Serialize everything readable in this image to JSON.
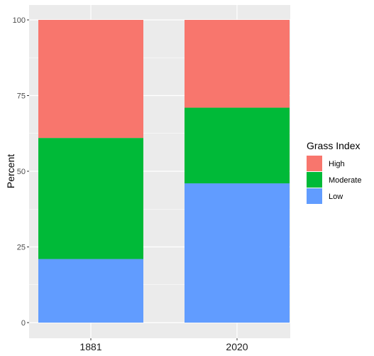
{
  "chart_data": {
    "type": "bar",
    "stacked": true,
    "categories": [
      "1881",
      "2020"
    ],
    "series": [
      {
        "name": "Low",
        "values": [
          21,
          46
        ],
        "color": "#619CFF"
      },
      {
        "name": "Moderate",
        "values": [
          40,
          25
        ],
        "color": "#00BA38"
      },
      {
        "name": "High",
        "values": [
          39,
          29
        ],
        "color": "#F8766D"
      }
    ],
    "ylabel": "Percent",
    "xlabel": "",
    "ylim": [
      0,
      100
    ],
    "yticks": [
      0,
      25,
      50,
      75,
      100
    ],
    "grid": true,
    "legend": {
      "title": "Grass Index",
      "placement": "right",
      "order": [
        "High",
        "Moderate",
        "Low"
      ]
    }
  }
}
